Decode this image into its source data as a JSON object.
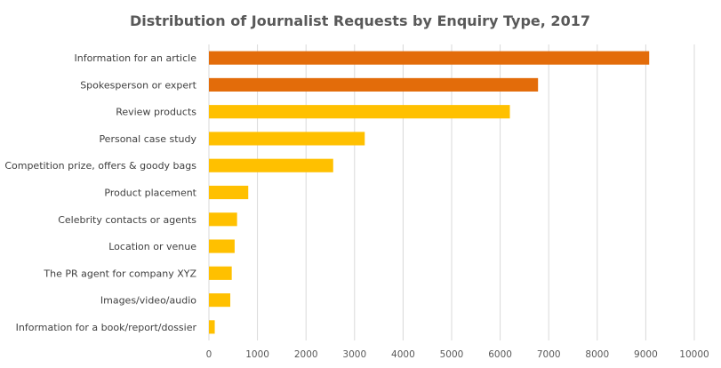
{
  "chart_data": {
    "type": "bar",
    "orientation": "horizontal",
    "title": "Distribution of Journalist Requests by Enquiry Type, 2017",
    "xlabel": "",
    "ylabel": "",
    "xlim": [
      0,
      10000
    ],
    "ticks": [
      "0",
      "1000",
      "2000",
      "3000",
      "4000",
      "5000",
      "6000",
      "7000",
      "8000",
      "9000",
      "10000"
    ],
    "grid": true,
    "categories": [
      "Information for an article",
      "Spokesperson or expert",
      "Review products",
      "Personal case study",
      "Competition prize, offers & goody bags",
      "Product placement",
      "Celebrity contacts or agents",
      "Location or venue",
      "The PR agent for company XYZ",
      "Images/video/audio",
      "Information for a book/report/dossier"
    ],
    "values": [
      9070,
      6780,
      6200,
      3210,
      2560,
      810,
      580,
      530,
      470,
      440,
      120
    ],
    "bar_colors": [
      "#e36c0a",
      "#e36c0a",
      "#ffc000",
      "#ffc000",
      "#ffc000",
      "#ffc000",
      "#ffc000",
      "#ffc000",
      "#ffc000",
      "#ffc000",
      "#ffc000"
    ]
  }
}
